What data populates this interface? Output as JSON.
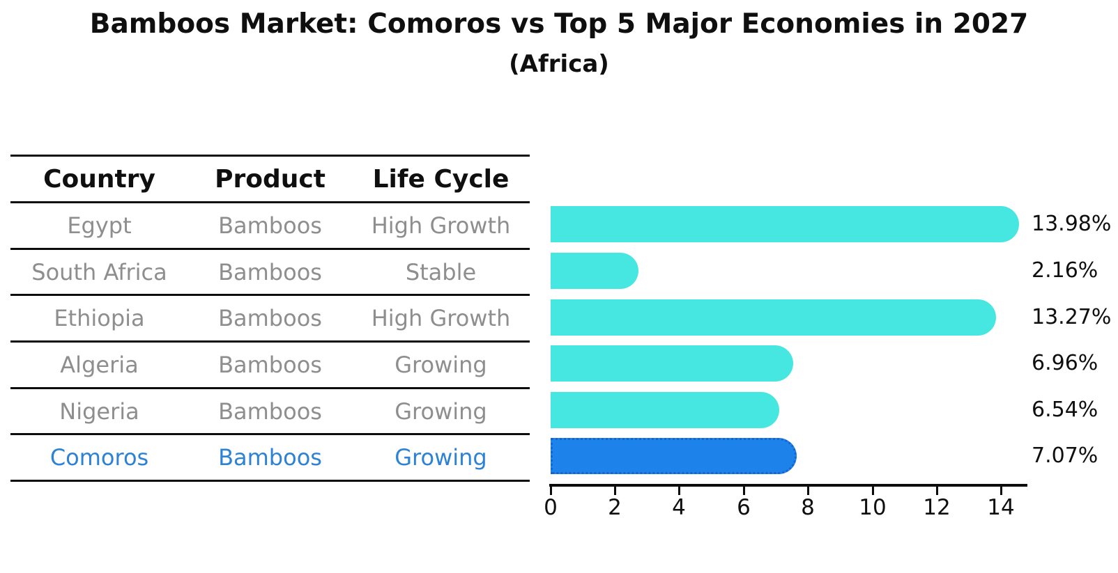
{
  "title": "Bamboos Market: Comoros vs Top 5 Major Economies in 2027",
  "subtitle": "(Africa)",
  "table": {
    "headers": [
      "Country",
      "Product",
      "Life Cycle"
    ],
    "rows": [
      {
        "country": "Egypt",
        "product": "Bamboos",
        "life_cycle": "High Growth",
        "highlight": false
      },
      {
        "country": "South Africa",
        "product": "Bamboos",
        "life_cycle": "Stable",
        "highlight": false
      },
      {
        "country": "Ethiopia",
        "product": "Bamboos",
        "life_cycle": "High Growth",
        "highlight": false
      },
      {
        "country": "Algeria",
        "product": "Bamboos",
        "life_cycle": "Growing",
        "highlight": false
      },
      {
        "country": "Nigeria",
        "product": "Bamboos",
        "life_cycle": "Growing",
        "highlight": false
      },
      {
        "country": "Comoros",
        "product": "Bamboos",
        "life_cycle": "Growing",
        "highlight": true
      }
    ]
  },
  "chart_data": {
    "type": "bar",
    "orientation": "horizontal",
    "title": "Bamboos Market: Comoros vs Top 5 Major Economies in 2027",
    "subtitle": "(Africa)",
    "categories": [
      "Egypt",
      "South Africa",
      "Ethiopia",
      "Algeria",
      "Nigeria",
      "Comoros"
    ],
    "values": [
      13.98,
      2.16,
      13.27,
      6.96,
      6.54,
      7.07
    ],
    "value_labels": [
      "13.98%",
      "2.16%",
      "13.27%",
      "6.96%",
      "6.54%",
      "7.07%"
    ],
    "highlight_index": 5,
    "x_ticks": [
      0,
      2,
      4,
      6,
      8,
      10,
      12,
      14
    ],
    "xlim": [
      0,
      15
    ],
    "grid": false,
    "legend": false,
    "colors": {
      "bar": "#46E6E1",
      "highlight_bar": "#1E82EB",
      "highlight_border": "#1565D0",
      "row_text": "#8e8e8e",
      "highlight_text": "#2E82D6",
      "axis": "#0c0c0c"
    }
  }
}
